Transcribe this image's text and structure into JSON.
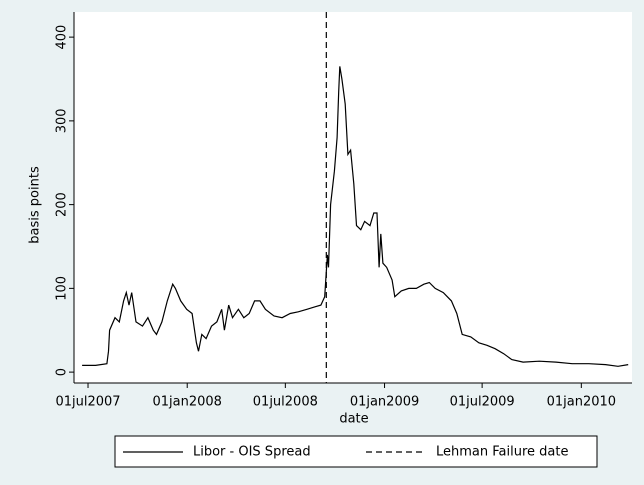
{
  "chart_data": {
    "type": "line",
    "xlabel": "date",
    "ylabel": "basis points",
    "xlim": [
      "2007-06-05",
      "2010-04-05"
    ],
    "xticks": [
      {
        "value": "2007-07-01",
        "label": "01jul2007"
      },
      {
        "value": "2008-01-01",
        "label": "01jan2008"
      },
      {
        "value": "2008-07-01",
        "label": "01jul2008"
      },
      {
        "value": "2009-01-01",
        "label": "01jan2009"
      },
      {
        "value": "2009-07-01",
        "label": "01jul2009"
      },
      {
        "value": "2010-01-01",
        "label": "01jan2010"
      }
    ],
    "ylim": [
      -13,
      430
    ],
    "yticks": [
      0,
      100,
      200,
      300,
      400
    ],
    "series": [
      {
        "name": "Libor - OIS Spread",
        "color": "#000000",
        "style": "solid",
        "x": [
          "2007-06-20",
          "2007-07-15",
          "2007-08-05",
          "2007-08-08",
          "2007-08-10",
          "2007-08-20",
          "2007-08-28",
          "2007-09-05",
          "2007-09-10",
          "2007-09-15",
          "2007-09-20",
          "2007-09-28",
          "2007-10-10",
          "2007-10-20",
          "2007-10-30",
          "2007-11-05",
          "2007-11-15",
          "2007-11-25",
          "2007-12-05",
          "2007-12-10",
          "2007-12-20",
          "2007-12-31",
          "2008-01-10",
          "2008-01-18",
          "2008-01-22",
          "2008-01-28",
          "2008-02-05",
          "2008-02-15",
          "2008-02-25",
          "2008-03-05",
          "2008-03-10",
          "2008-03-18",
          "2008-03-25",
          "2008-04-05",
          "2008-04-15",
          "2008-04-25",
          "2008-05-05",
          "2008-05-15",
          "2008-05-25",
          "2008-06-10",
          "2008-06-25",
          "2008-07-10",
          "2008-07-25",
          "2008-08-10",
          "2008-08-25",
          "2008-09-05",
          "2008-09-12",
          "2008-09-15",
          "2008-09-17",
          "2008-09-19",
          "2008-09-23",
          "2008-09-30",
          "2008-10-05",
          "2008-10-08",
          "2008-10-10",
          "2008-10-14",
          "2008-10-20",
          "2008-10-25",
          "2008-10-30",
          "2008-11-05",
          "2008-11-10",
          "2008-11-18",
          "2008-11-25",
          "2008-12-05",
          "2008-12-12",
          "2008-12-18",
          "2008-12-22",
          "2008-12-25",
          "2008-12-29",
          "2009-01-05",
          "2009-01-15",
          "2009-01-20",
          "2009-02-01",
          "2009-02-15",
          "2009-03-01",
          "2009-03-15",
          "2009-03-25",
          "2009-04-05",
          "2009-04-20",
          "2009-05-05",
          "2009-05-15",
          "2009-05-25",
          "2009-06-10",
          "2009-06-25",
          "2009-07-10",
          "2009-07-25",
          "2009-08-10",
          "2009-08-25",
          "2009-09-15",
          "2009-10-15",
          "2009-11-15",
          "2009-12-15",
          "2010-01-15",
          "2010-02-15",
          "2010-03-10",
          "2010-03-29"
        ],
        "values": [
          8,
          8,
          10,
          25,
          50,
          65,
          60,
          85,
          95,
          80,
          95,
          60,
          55,
          65,
          50,
          45,
          60,
          85,
          105,
          100,
          85,
          75,
          70,
          35,
          25,
          45,
          40,
          55,
          60,
          75,
          50,
          80,
          65,
          75,
          65,
          70,
          85,
          85,
          75,
          67,
          65,
          70,
          72,
          75,
          78,
          80,
          90,
          120,
          140,
          125,
          200,
          240,
          280,
          335,
          365,
          350,
          320,
          260,
          265,
          225,
          175,
          170,
          180,
          175,
          190,
          190,
          125,
          165,
          130,
          125,
          110,
          90,
          97,
          100,
          100,
          105,
          107,
          100,
          95,
          85,
          70,
          45,
          42,
          35,
          32,
          28,
          22,
          15,
          12,
          13,
          12,
          10,
          10,
          9,
          7,
          9
        ]
      },
      {
        "name": "Lehman Failure date",
        "color": "#000000",
        "style": "dashed",
        "xline": "2008-09-15"
      }
    ]
  }
}
